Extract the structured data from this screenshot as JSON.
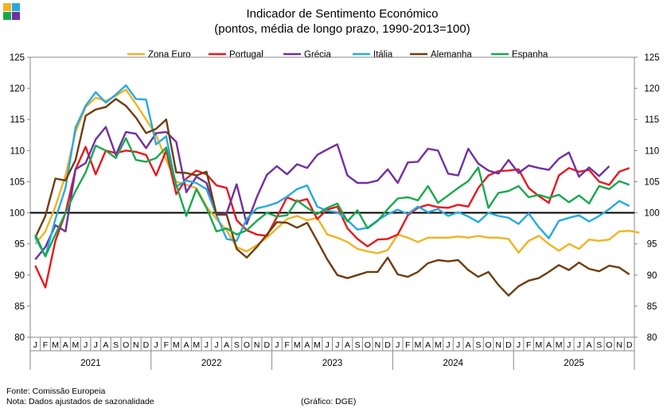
{
  "chart_data": {
    "type": "line",
    "title": "Indicador de Sentimento Económico",
    "subtitle": "(pontos, média de longo prazo, 1990-2013=100)",
    "ylim": [
      80,
      125
    ],
    "yticks": [
      80,
      85,
      90,
      95,
      100,
      105,
      110,
      115,
      120,
      125
    ],
    "reference_line": 100,
    "month_labels": [
      "J",
      "F",
      "M",
      "A",
      "M",
      "J",
      "J",
      "A",
      "S",
      "O",
      "N",
      "D"
    ],
    "years": [
      "2021",
      "2022",
      "2023",
      "2024",
      "2025"
    ],
    "legend_position": "top",
    "series": [
      {
        "name": "Zona Euro",
        "color": "#f0b323",
        "values": [
          95.0,
          97.0,
          101.0,
          106.0,
          113.0,
          117.0,
          118.5,
          118.0,
          118.8,
          119.8,
          117.5,
          115.0,
          112.5,
          108.5,
          105.0,
          104.5,
          104.0,
          101.0,
          99.0,
          97.2,
          94.5,
          93.8,
          94.8,
          96.0,
          97.5,
          99.0,
          99.5,
          98.8,
          99.2,
          96.5,
          96.0,
          95.3,
          94.2,
          93.8,
          93.5,
          94.0,
          96.5,
          96.0,
          95.3,
          96.0,
          96.0,
          96.0,
          96.2,
          96.0,
          96.3,
          96.0,
          96.0,
          95.8,
          93.6,
          95.5,
          96.3,
          95.0,
          93.9,
          95.0,
          94.2,
          95.7,
          95.5,
          95.7,
          97.0,
          97.1,
          96.8
        ]
      },
      {
        "name": "Portugal",
        "color": "#e8181e",
        "values": [
          91.5,
          88.0,
          95.5,
          100.0,
          107.0,
          110.6,
          106.2,
          110.0,
          109.6,
          110.0,
          109.8,
          109.3,
          106.0,
          110.0,
          103.0,
          105.5,
          106.8,
          106.2,
          104.4,
          104.0,
          98.8,
          97.2,
          96.5,
          96.3,
          99.3,
          102.5,
          101.8,
          102.2,
          99.0,
          100.5,
          101.0,
          97.5,
          95.8,
          94.6,
          95.7,
          95.8,
          96.5,
          99.6,
          100.8,
          101.3,
          100.9,
          100.8,
          101.3,
          101.0,
          104.0,
          106.0,
          106.7,
          106.8,
          107.0,
          104.0,
          102.7,
          101.6,
          106.0,
          107.2,
          106.6,
          106.9,
          105.0,
          104.5,
          106.6,
          107.2
        ]
      },
      {
        "name": "Grécia",
        "color": "#7030a0",
        "values": [
          92.5,
          94.5,
          98.0,
          97.0,
          107.0,
          108.0,
          111.8,
          113.8,
          109.3,
          113.0,
          112.7,
          110.4,
          112.8,
          113.0,
          111.4,
          103.3,
          105.8,
          104.8,
          99.8,
          99.9,
          104.6,
          98.2,
          102.5,
          106.1,
          107.5,
          106.2,
          107.8,
          107.2,
          109.3,
          110.2,
          111.0,
          106.0,
          104.8,
          104.8,
          105.2,
          107.0,
          104.8,
          108.1,
          108.2,
          110.3,
          110.0,
          106.3,
          106.0,
          110.3,
          107.9,
          106.8,
          106.3,
          108.5,
          106.4,
          107.6,
          107.2,
          106.9,
          108.7,
          109.7,
          105.8,
          107.3,
          105.9,
          107.5
        ]
      },
      {
        "name": "Itália",
        "color": "#26a9e0",
        "values": [
          96.0,
          93.0,
          99.0,
          104.0,
          113.7,
          117.2,
          119.4,
          117.7,
          119.0,
          120.5,
          118.3,
          118.2,
          111.0,
          112.3,
          104.2,
          105.2,
          104.8,
          103.8,
          99.6,
          95.8,
          95.5,
          99.0,
          100.7,
          101.1,
          101.6,
          102.6,
          103.8,
          104.4,
          101.0,
          100.3,
          100.1,
          98.8,
          97.3,
          97.6,
          98.8,
          99.8,
          100.5,
          99.8,
          101.0,
          100.1,
          100.6,
          99.5,
          100.1,
          99.4,
          98.5,
          100.0,
          99.5,
          99.2,
          98.2,
          99.9,
          97.7,
          95.9,
          98.7,
          99.2,
          99.6,
          98.6,
          99.5,
          100.6,
          101.9,
          101.1
        ]
      },
      {
        "name": "Alemanha",
        "color": "#6e3d0e",
        "values": [
          96.0,
          99.5,
          105.5,
          105.2,
          108.5,
          115.6,
          116.6,
          117.0,
          118.3,
          117.2,
          115.3,
          112.8,
          113.5,
          115.0,
          106.5,
          106.4,
          106.0,
          106.6,
          99.7,
          99.7,
          94.2,
          92.8,
          94.5,
          96.5,
          98.5,
          98.4,
          97.6,
          98.4,
          95.5,
          92.5,
          90.0,
          89.5,
          90.0,
          90.5,
          90.5,
          92.8,
          90.1,
          89.7,
          90.5,
          91.9,
          92.4,
          92.2,
          92.4,
          90.8,
          89.7,
          90.5,
          88.4,
          86.7,
          88.2,
          89.1,
          89.5,
          90.5,
          91.6,
          90.8,
          92.0,
          91.0,
          90.6,
          91.5,
          91.2,
          90.1
        ]
      },
      {
        "name": "Espanha",
        "color": "#19a84e",
        "values": [
          96.5,
          93.0,
          96.5,
          100.0,
          103.5,
          106.5,
          110.8,
          110.0,
          108.8,
          112.0,
          108.5,
          108.2,
          108.8,
          110.5,
          104.5,
          99.5,
          103.8,
          100.8,
          97.0,
          97.5,
          96.5,
          97.2,
          98.7,
          100.0,
          99.4,
          99.6,
          102.0,
          100.8,
          99.8,
          100.8,
          101.5,
          98.6,
          100.4,
          97.5,
          98.7,
          100.6,
          102.3,
          102.5,
          102.0,
          104.3,
          101.6,
          102.8,
          104.0,
          105.1,
          107.3,
          100.8,
          103.2,
          103.5,
          104.3,
          102.5,
          102.9,
          102.4,
          102.9,
          101.7,
          102.8,
          101.5,
          104.3,
          103.8,
          105.1,
          104.5
        ]
      }
    ]
  },
  "footer": {
    "source": "Fonte: Comissão Europeia",
    "note": "Nota: Dados ajustados de sazonalidade",
    "credit": "(Gráfico: DGE)"
  },
  "logo_colors": [
    "#f0b323",
    "#26a9e0",
    "#19a84e",
    "#7030a0"
  ]
}
